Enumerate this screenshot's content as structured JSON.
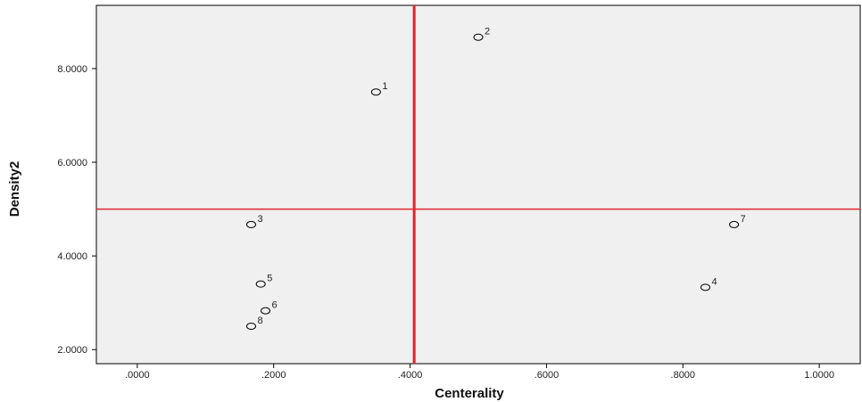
{
  "chart_data": {
    "type": "scatter",
    "xlabel": "Centerality",
    "ylabel": "Density2",
    "xlim": [
      -0.06,
      1.06
    ],
    "ylim": [
      1.7,
      9.35
    ],
    "x_ticks": [
      0.0,
      0.2,
      0.4,
      0.6,
      0.8,
      1.0
    ],
    "x_tick_labels": [
      ".0000",
      ".2000",
      ".4000",
      ".6000",
      ".8000",
      "1.0000"
    ],
    "y_ticks": [
      2.0,
      4.0,
      6.0,
      8.0
    ],
    "y_tick_labels": [
      "2.0000",
      "4.0000",
      "6.0000",
      "8.0000"
    ],
    "points": [
      {
        "label": "1",
        "x": 0.35,
        "y": 7.5
      },
      {
        "label": "2",
        "x": 0.5,
        "y": 8.67
      },
      {
        "label": "3",
        "x": 0.167,
        "y": 4.67
      },
      {
        "label": "4",
        "x": 0.833,
        "y": 3.33
      },
      {
        "label": "5",
        "x": 0.181,
        "y": 3.4
      },
      {
        "label": "6",
        "x": 0.188,
        "y": 2.83
      },
      {
        "label": "7",
        "x": 0.875,
        "y": 4.67
      },
      {
        "label": "8",
        "x": 0.167,
        "y": 2.5
      }
    ],
    "reference_lines": {
      "x": 0.406,
      "y": 5.0
    },
    "reference_color": "#e0262b",
    "plot_background": "#f0f0f0",
    "grid": false,
    "legend": "none"
  }
}
